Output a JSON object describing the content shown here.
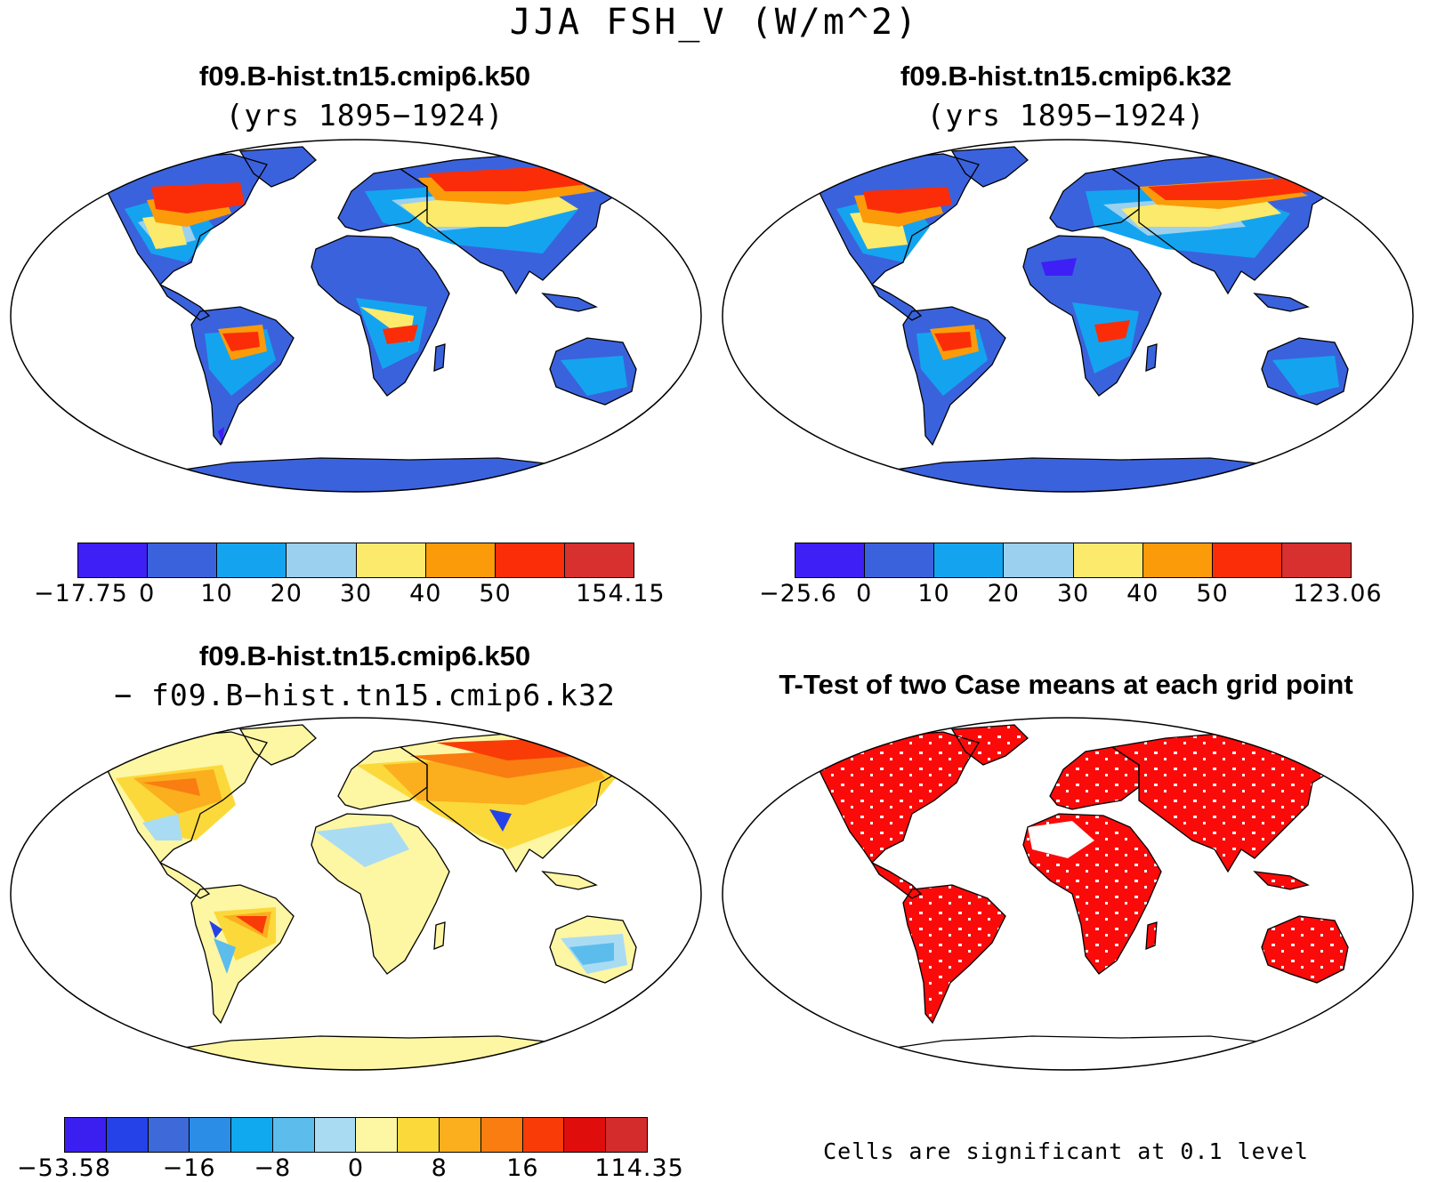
{
  "title": "JJA FSH_V (W/m^2)",
  "panels": {
    "top_left": {
      "case": "f09.B-hist.tn15.cmip6.k50",
      "years": "(yrs 1895−1924)",
      "colorbar": {
        "colors": [
          "#3e1ff5",
          "#3b62dd",
          "#14a4ef",
          "#9bd0ee",
          "#fbea6b",
          "#fb9b0a",
          "#fb2d08",
          "#d82f2f"
        ],
        "labels": [
          "−17.75",
          "0",
          "10",
          "20",
          "30",
          "40",
          "50",
          "154.15"
        ]
      }
    },
    "top_right": {
      "case": "f09.B-hist.tn15.cmip6.k32",
      "years": "(yrs 1895−1924)",
      "colorbar": {
        "colors": [
          "#3e1ff5",
          "#3b62dd",
          "#14a4ef",
          "#9bd0ee",
          "#fbea6b",
          "#fb9b0a",
          "#fb2d08",
          "#d82f2f"
        ],
        "labels": [
          "−25.6",
          "0",
          "10",
          "20",
          "30",
          "40",
          "50",
          "123.06"
        ]
      }
    },
    "bottom_left": {
      "case": "f09.B-hist.tn15.cmip6.k50",
      "subtract": "− f09.B−hist.tn15.cmip6.k32",
      "colorbar": {
        "colors": [
          "#3b1ef0",
          "#2442e8",
          "#3d6ad8",
          "#2b8de6",
          "#10a8ee",
          "#5cbcec",
          "#a9dcf3",
          "#fdf6a3",
          "#fbd93a",
          "#fbae1e",
          "#f97d10",
          "#f93b08",
          "#e00d0d",
          "#d42c2c"
        ],
        "labels": [
          "−53.58",
          "−16",
          "−8",
          "0",
          "8",
          "16",
          "114.35"
        ]
      }
    },
    "bottom_right": {
      "title": "T-Test of two Case means at each grid point",
      "note": "Cells are significant at 0.1 level"
    }
  }
}
